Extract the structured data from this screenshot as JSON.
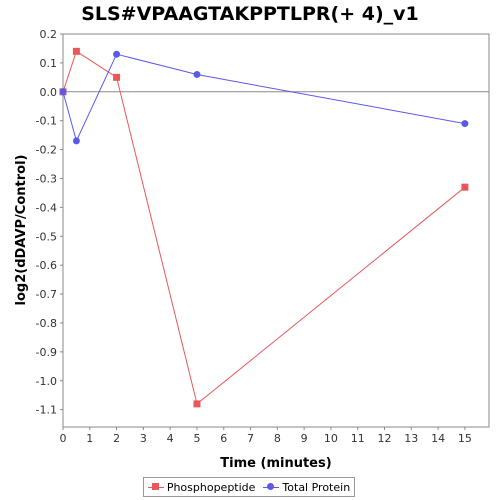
{
  "chart_data": {
    "type": "line",
    "title": "SLS#VPAAGTAKPPTLPR(+ 4)_v1",
    "xlabel": "Time (minutes)",
    "ylabel": "log2(dDAVP/Control)",
    "xlim": [
      0,
      15.9
    ],
    "ylim": [
      -1.16,
      0.2
    ],
    "xticks": [
      0,
      1,
      2,
      3,
      4,
      5,
      6,
      7,
      8,
      9,
      10,
      11,
      12,
      13,
      14,
      15
    ],
    "yticks": [
      0.2,
      0.1,
      0.0,
      -0.1,
      -0.2,
      -0.3,
      -0.4,
      -0.5,
      -0.6,
      -0.7,
      -0.8,
      -0.9,
      -1.0,
      -1.1
    ],
    "ytick_labels": [
      "0.2",
      "0.1",
      "0.0",
      "-0.1",
      "-0.2",
      "-0.3",
      "-0.4",
      "-0.5",
      "-0.6",
      "-0.7",
      "-0.8",
      "-0.9",
      "-1.0",
      "-1.1"
    ],
    "zero_line": true,
    "grid": false,
    "legend_position": "bottom",
    "series": [
      {
        "name": "Phosphopeptide",
        "color": "#e8585a",
        "marker": "square",
        "x": [
          0,
          0.5,
          2,
          5,
          15
        ],
        "y": [
          0.0,
          0.14,
          0.05,
          -1.08,
          -0.33
        ]
      },
      {
        "name": "Total Protein",
        "color": "#5a5ae8",
        "marker": "circle",
        "x": [
          0,
          0.5,
          2,
          5,
          15
        ],
        "y": [
          0.0,
          -0.17,
          0.13,
          0.06,
          -0.11
        ]
      }
    ]
  }
}
